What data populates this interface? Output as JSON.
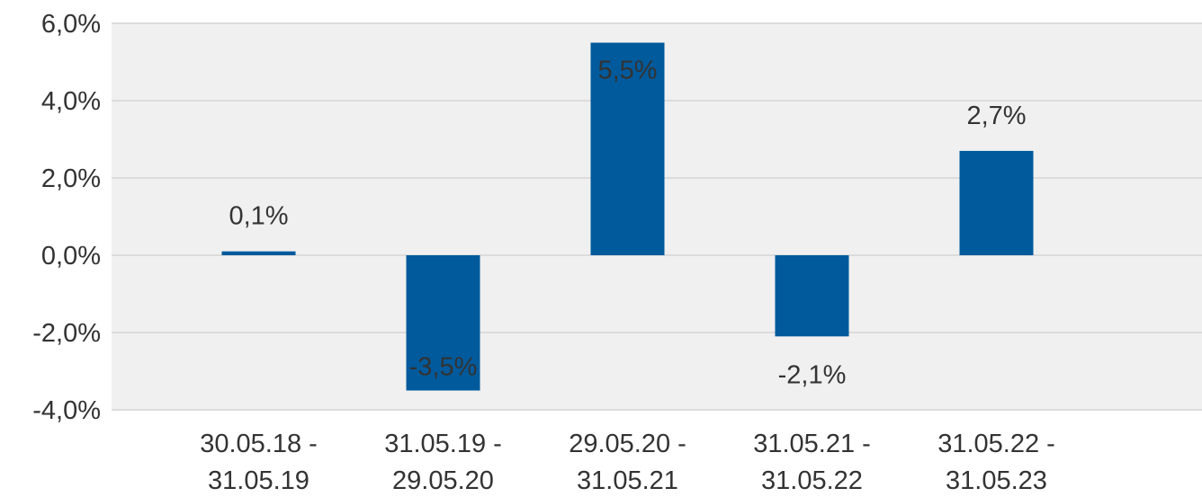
{
  "chart_data": {
    "type": "bar",
    "title": "",
    "xlabel": "",
    "ylabel": "",
    "ylim": [
      -4.0,
      6.0
    ],
    "yticks": [
      6.0,
      4.0,
      2.0,
      0.0,
      -2.0,
      -4.0
    ],
    "ytick_labels": [
      "6,0%",
      "4,0%",
      "2,0%",
      "0,0%",
      "-2,0%",
      "-4,0%"
    ],
    "grid": true,
    "categories": [
      [
        "30.05.18 -",
        "31.05.19"
      ],
      [
        "31.05.19 -",
        "29.05.20"
      ],
      [
        "29.05.20 -",
        "31.05.21"
      ],
      [
        "31.05.21 -",
        "31.05.22"
      ],
      [
        "31.05.22 -",
        "31.05.23"
      ]
    ],
    "values": [
      0.1,
      -3.5,
      5.5,
      -2.1,
      2.7
    ],
    "data_labels": [
      "0,1%",
      "-3,5%",
      "5,5%",
      "-2,1%",
      "2,7%"
    ],
    "colors": {
      "bar": "#005a9c",
      "plot_background": "#f0f0f0",
      "gridline": "#dcdcdc",
      "text": "#333333"
    }
  }
}
